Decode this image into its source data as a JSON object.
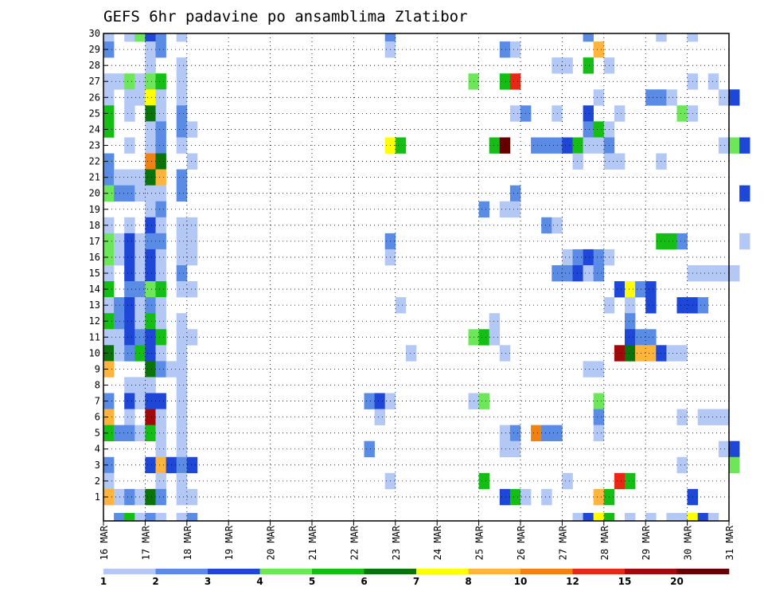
{
  "chart_data": {
    "type": "heatmap",
    "title": "GEFS 6hr padavine po ansamblima Zlatibor",
    "x_ticks": [
      "16 MAR",
      "17 MAR",
      "18 MAR",
      "19 MAR",
      "20 MAR",
      "21 MAR",
      "22 MAR",
      "23 MAR",
      "24 MAR",
      "25 MAR",
      "26 MAR",
      "27 MAR",
      "28 MAR",
      "29 MAR",
      "30 MAR",
      "31 MAR"
    ],
    "y_ticks": [
      1,
      2,
      3,
      4,
      5,
      6,
      7,
      8,
      9,
      10,
      11,
      12,
      13,
      14,
      15,
      16,
      17,
      18,
      19,
      20,
      21,
      22,
      23,
      24,
      25,
      26,
      27,
      28,
      29,
      30
    ],
    "x_range": [
      "16 MAR 00z",
      "31 MAR 00z"
    ],
    "time_step_hours": 6,
    "y_range": [
      0,
      30
    ],
    "grid": "dotted",
    "legend": "bottom",
    "levels": [
      "1",
      "2",
      "3",
      "4",
      "5",
      "6",
      "7",
      "8",
      "10",
      "12",
      "15",
      "20"
    ],
    "level_colors": [
      "#b4c8f5",
      "#5a8ce6",
      "#1e46d7",
      "#6ee65a",
      "#14be14",
      "#0a730a",
      "#ffff00",
      "#ffb43c",
      "#f08214",
      "#e62814",
      "#a00a0a",
      "#640000"
    ],
    "cells_format": "[member, time_step_index (6h steps from 16 MAR 00z), level_index]",
    "cells": [
      [
        30,
        0,
        0
      ],
      [
        30,
        2,
        0
      ],
      [
        30,
        3,
        3
      ],
      [
        30,
        4,
        2
      ],
      [
        30,
        5,
        1
      ],
      [
        30,
        7,
        0
      ],
      [
        30,
        27,
        1
      ],
      [
        30,
        46,
        1
      ],
      [
        30,
        53,
        0
      ],
      [
        30,
        56,
        0
      ],
      [
        29,
        0,
        1
      ],
      [
        29,
        4,
        0
      ],
      [
        29,
        5,
        1
      ],
      [
        29,
        27,
        0
      ],
      [
        29,
        38,
        1
      ],
      [
        29,
        39,
        0
      ],
      [
        29,
        47,
        7
      ],
      [
        28,
        4,
        0
      ],
      [
        28,
        7,
        0
      ],
      [
        28,
        43,
        0
      ],
      [
        28,
        44,
        0
      ],
      [
        28,
        46,
        4
      ],
      [
        28,
        48,
        0
      ],
      [
        27,
        0,
        0
      ],
      [
        27,
        1,
        0
      ],
      [
        27,
        2,
        3
      ],
      [
        27,
        3,
        0
      ],
      [
        27,
        4,
        3
      ],
      [
        27,
        5,
        4
      ],
      [
        27,
        7,
        0
      ],
      [
        27,
        35,
        3
      ],
      [
        27,
        38,
        4
      ],
      [
        27,
        39,
        9
      ],
      [
        27,
        56,
        0
      ],
      [
        27,
        58,
        0
      ],
      [
        26,
        0,
        0
      ],
      [
        26,
        2,
        0
      ],
      [
        26,
        3,
        0
      ],
      [
        26,
        4,
        6
      ],
      [
        26,
        5,
        0
      ],
      [
        26,
        7,
        0
      ],
      [
        26,
        47,
        0
      ],
      [
        26,
        52,
        1
      ],
      [
        26,
        53,
        1
      ],
      [
        26,
        54,
        0
      ],
      [
        26,
        59,
        0
      ],
      [
        26,
        60,
        2
      ],
      [
        25,
        0,
        4
      ],
      [
        25,
        2,
        0
      ],
      [
        25,
        4,
        5
      ],
      [
        25,
        5,
        0
      ],
      [
        25,
        7,
        1
      ],
      [
        25,
        39,
        0
      ],
      [
        25,
        40,
        1
      ],
      [
        25,
        43,
        0
      ],
      [
        25,
        46,
        2
      ],
      [
        25,
        49,
        0
      ],
      [
        25,
        55,
        3
      ],
      [
        25,
        56,
        0
      ],
      [
        24,
        0,
        4
      ],
      [
        24,
        4,
        0
      ],
      [
        24,
        5,
        1
      ],
      [
        24,
        7,
        1
      ],
      [
        24,
        8,
        0
      ],
      [
        24,
        46,
        1
      ],
      [
        24,
        47,
        4
      ],
      [
        24,
        48,
        0
      ],
      [
        23,
        2,
        0
      ],
      [
        23,
        4,
        0
      ],
      [
        23,
        5,
        1
      ],
      [
        23,
        7,
        0
      ],
      [
        23,
        27,
        6
      ],
      [
        23,
        28,
        4
      ],
      [
        23,
        37,
        4
      ],
      [
        23,
        38,
        11
      ],
      [
        23,
        41,
        1
      ],
      [
        23,
        42,
        1
      ],
      [
        23,
        43,
        1
      ],
      [
        23,
        44,
        2
      ],
      [
        23,
        45,
        4
      ],
      [
        23,
        46,
        0
      ],
      [
        23,
        47,
        0
      ],
      [
        23,
        48,
        1
      ],
      [
        23,
        59,
        0
      ],
      [
        23,
        60,
        3
      ],
      [
        23,
        61,
        2
      ],
      [
        22,
        0,
        1
      ],
      [
        22,
        4,
        8
      ],
      [
        22,
        5,
        5
      ],
      [
        22,
        8,
        0
      ],
      [
        22,
        45,
        0
      ],
      [
        22,
        48,
        0
      ],
      [
        22,
        49,
        0
      ],
      [
        22,
        53,
        0
      ],
      [
        21,
        0,
        1
      ],
      [
        21,
        1,
        0
      ],
      [
        21,
        2,
        0
      ],
      [
        21,
        3,
        0
      ],
      [
        21,
        4,
        5
      ],
      [
        21,
        5,
        7
      ],
      [
        21,
        7,
        1
      ],
      [
        20,
        0,
        3
      ],
      [
        20,
        1,
        1
      ],
      [
        20,
        2,
        1
      ],
      [
        20,
        3,
        0
      ],
      [
        20,
        4,
        0
      ],
      [
        20,
        5,
        0
      ],
      [
        20,
        7,
        1
      ],
      [
        20,
        39,
        1
      ],
      [
        20,
        61,
        2
      ],
      [
        19,
        4,
        0
      ],
      [
        19,
        5,
        1
      ],
      [
        19,
        36,
        1
      ],
      [
        19,
        38,
        0
      ],
      [
        19,
        39,
        0
      ],
      [
        18,
        0,
        0
      ],
      [
        18,
        2,
        0
      ],
      [
        18,
        4,
        2
      ],
      [
        18,
        5,
        0
      ],
      [
        18,
        7,
        0
      ],
      [
        18,
        8,
        0
      ],
      [
        18,
        42,
        1
      ],
      [
        18,
        43,
        0
      ],
      [
        17,
        0,
        3
      ],
      [
        17,
        1,
        0
      ],
      [
        17,
        2,
        2
      ],
      [
        17,
        3,
        0
      ],
      [
        17,
        4,
        1
      ],
      [
        17,
        5,
        1
      ],
      [
        17,
        7,
        0
      ],
      [
        17,
        8,
        0
      ],
      [
        17,
        27,
        1
      ],
      [
        17,
        53,
        4
      ],
      [
        17,
        54,
        4
      ],
      [
        17,
        55,
        1
      ],
      [
        17,
        61,
        0
      ],
      [
        16,
        0,
        3
      ],
      [
        16,
        1,
        0
      ],
      [
        16,
        2,
        2
      ],
      [
        16,
        3,
        0
      ],
      [
        16,
        4,
        2
      ],
      [
        16,
        5,
        0
      ],
      [
        16,
        7,
        0
      ],
      [
        16,
        8,
        0
      ],
      [
        16,
        27,
        0
      ],
      [
        16,
        44,
        0
      ],
      [
        16,
        45,
        1
      ],
      [
        16,
        46,
        2
      ],
      [
        16,
        47,
        1
      ],
      [
        16,
        48,
        0
      ],
      [
        15,
        0,
        0
      ],
      [
        15,
        2,
        2
      ],
      [
        15,
        3,
        0
      ],
      [
        15,
        4,
        2
      ],
      [
        15,
        5,
        0
      ],
      [
        15,
        7,
        1
      ],
      [
        15,
        43,
        1
      ],
      [
        15,
        44,
        1
      ],
      [
        15,
        45,
        2
      ],
      [
        15,
        46,
        0
      ],
      [
        15,
        47,
        1
      ],
      [
        15,
        56,
        0
      ],
      [
        15,
        57,
        0
      ],
      [
        15,
        58,
        0
      ],
      [
        15,
        59,
        0
      ],
      [
        15,
        60,
        0
      ],
      [
        14,
        0,
        4
      ],
      [
        14,
        2,
        1
      ],
      [
        14,
        3,
        1
      ],
      [
        14,
        4,
        3
      ],
      [
        14,
        5,
        4
      ],
      [
        14,
        7,
        0
      ],
      [
        14,
        8,
        0
      ],
      [
        14,
        49,
        2
      ],
      [
        14,
        50,
        6
      ],
      [
        14,
        51,
        1
      ],
      [
        14,
        52,
        2
      ],
      [
        13,
        0,
        0
      ],
      [
        13,
        1,
        1
      ],
      [
        13,
        2,
        2
      ],
      [
        13,
        3,
        0
      ],
      [
        13,
        4,
        1
      ],
      [
        13,
        5,
        0
      ],
      [
        13,
        28,
        0
      ],
      [
        13,
        48,
        0
      ],
      [
        13,
        50,
        0
      ],
      [
        13,
        52,
        2
      ],
      [
        13,
        55,
        2
      ],
      [
        13,
        56,
        2
      ],
      [
        13,
        57,
        1
      ],
      [
        12,
        0,
        4
      ],
      [
        12,
        1,
        1
      ],
      [
        12,
        2,
        2
      ],
      [
        12,
        3,
        0
      ],
      [
        12,
        4,
        4
      ],
      [
        12,
        5,
        0
      ],
      [
        12,
        7,
        0
      ],
      [
        12,
        37,
        0
      ],
      [
        12,
        50,
        1
      ],
      [
        11,
        0,
        0
      ],
      [
        11,
        1,
        0
      ],
      [
        11,
        2,
        2
      ],
      [
        11,
        3,
        1
      ],
      [
        11,
        4,
        2
      ],
      [
        11,
        5,
        4
      ],
      [
        11,
        7,
        0
      ],
      [
        11,
        8,
        0
      ],
      [
        11,
        35,
        3
      ],
      [
        11,
        36,
        4
      ],
      [
        11,
        37,
        0
      ],
      [
        11,
        50,
        2
      ],
      [
        11,
        51,
        1
      ],
      [
        11,
        52,
        1
      ],
      [
        10,
        0,
        5
      ],
      [
        10,
        1,
        0
      ],
      [
        10,
        2,
        1
      ],
      [
        10,
        3,
        4
      ],
      [
        10,
        4,
        2
      ],
      [
        10,
        5,
        0
      ],
      [
        10,
        7,
        0
      ],
      [
        10,
        29,
        0
      ],
      [
        10,
        38,
        0
      ],
      [
        10,
        49,
        10
      ],
      [
        10,
        50,
        5
      ],
      [
        10,
        51,
        7
      ],
      [
        10,
        52,
        7
      ],
      [
        10,
        53,
        2
      ],
      [
        10,
        54,
        0
      ],
      [
        10,
        55,
        0
      ],
      [
        9,
        0,
        7
      ],
      [
        9,
        4,
        5
      ],
      [
        9,
        5,
        1
      ],
      [
        9,
        6,
        0
      ],
      [
        9,
        7,
        0
      ],
      [
        9,
        46,
        0
      ],
      [
        9,
        47,
        0
      ],
      [
        8,
        2,
        0
      ],
      [
        8,
        3,
        0
      ],
      [
        8,
        4,
        0
      ],
      [
        8,
        7,
        0
      ],
      [
        7,
        0,
        1
      ],
      [
        7,
        2,
        2
      ],
      [
        7,
        3,
        0
      ],
      [
        7,
        4,
        2
      ],
      [
        7,
        5,
        2
      ],
      [
        7,
        7,
        0
      ],
      [
        7,
        25,
        1
      ],
      [
        7,
        26,
        2
      ],
      [
        7,
        27,
        0
      ],
      [
        7,
        35,
        0
      ],
      [
        7,
        36,
        3
      ],
      [
        7,
        47,
        3
      ],
      [
        6,
        0,
        7
      ],
      [
        6,
        2,
        0
      ],
      [
        6,
        4,
        10
      ],
      [
        6,
        5,
        0
      ],
      [
        6,
        7,
        0
      ],
      [
        6,
        26,
        0
      ],
      [
        6,
        47,
        1
      ],
      [
        6,
        55,
        0
      ],
      [
        6,
        57,
        0
      ],
      [
        6,
        58,
        0
      ],
      [
        6,
        59,
        0
      ],
      [
        5,
        0,
        4
      ],
      [
        5,
        1,
        1
      ],
      [
        5,
        2,
        1
      ],
      [
        5,
        3,
        0
      ],
      [
        5,
        4,
        4
      ],
      [
        5,
        5,
        0
      ],
      [
        5,
        7,
        0
      ],
      [
        5,
        38,
        0
      ],
      [
        5,
        39,
        1
      ],
      [
        5,
        41,
        8
      ],
      [
        5,
        42,
        1
      ],
      [
        5,
        43,
        1
      ],
      [
        5,
        47,
        0
      ],
      [
        4,
        5,
        0
      ],
      [
        4,
        7,
        0
      ],
      [
        4,
        25,
        1
      ],
      [
        4,
        38,
        0
      ],
      [
        4,
        39,
        0
      ],
      [
        4,
        59,
        0
      ],
      [
        4,
        60,
        2
      ],
      [
        3,
        0,
        1
      ],
      [
        3,
        4,
        2
      ],
      [
        3,
        5,
        7
      ],
      [
        3,
        6,
        2
      ],
      [
        3,
        7,
        1
      ],
      [
        3,
        8,
        2
      ],
      [
        3,
        55,
        0
      ],
      [
        3,
        60,
        3
      ],
      [
        2,
        0,
        0
      ],
      [
        2,
        5,
        0
      ],
      [
        2,
        7,
        0
      ],
      [
        2,
        27,
        0
      ],
      [
        2,
        36,
        4
      ],
      [
        2,
        44,
        0
      ],
      [
        2,
        49,
        9
      ],
      [
        2,
        50,
        4
      ],
      [
        1,
        0,
        7
      ],
      [
        1,
        1,
        0
      ],
      [
        1,
        2,
        1
      ],
      [
        1,
        3,
        0
      ],
      [
        1,
        4,
        5
      ],
      [
        1,
        5,
        1
      ],
      [
        1,
        7,
        0
      ],
      [
        1,
        8,
        0
      ],
      [
        1,
        38,
        2
      ],
      [
        1,
        39,
        4
      ],
      [
        1,
        40,
        0
      ],
      [
        1,
        42,
        0
      ],
      [
        1,
        47,
        7
      ],
      [
        1,
        48,
        4
      ],
      [
        1,
        56,
        2
      ],
      [
        0,
        1,
        1
      ],
      [
        0,
        2,
        4
      ],
      [
        0,
        3,
        0
      ],
      [
        0,
        4,
        1
      ],
      [
        0,
        5,
        0
      ],
      [
        0,
        7,
        0
      ],
      [
        0,
        8,
        1
      ],
      [
        0,
        45,
        0
      ],
      [
        0,
        46,
        2
      ],
      [
        0,
        47,
        6
      ],
      [
        0,
        48,
        4
      ],
      [
        0,
        50,
        0
      ],
      [
        0,
        52,
        0
      ],
      [
        0,
        54,
        0
      ],
      [
        0,
        55,
        0
      ],
      [
        0,
        56,
        6
      ],
      [
        0,
        57,
        2
      ],
      [
        0,
        58,
        0
      ]
    ]
  }
}
